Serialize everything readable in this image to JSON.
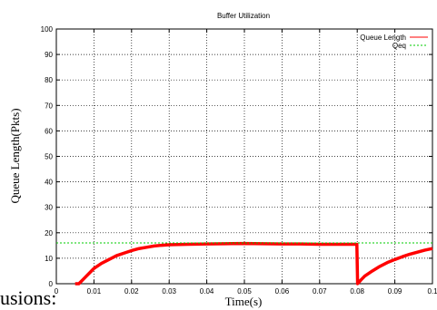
{
  "chart_data": {
    "type": "line",
    "title": "Buffer Utilization",
    "xlabel": "Time(s)",
    "ylabel": "Queue Length(Pkts)",
    "xlim": [
      0,
      0.1
    ],
    "ylim": [
      0,
      100
    ],
    "x_ticks": [
      "0",
      "0.01",
      "0.02",
      "0.03",
      "0.04",
      "0.05",
      "0.06",
      "0.07",
      "0.08",
      "0.09",
      "0.1"
    ],
    "y_ticks": [
      "0",
      "10",
      "20",
      "30",
      "40",
      "50",
      "60",
      "70",
      "80",
      "90",
      "100"
    ],
    "grid": true,
    "legend_position": "top-right",
    "series": [
      {
        "name": "Queue Length",
        "color": "#ff0000",
        "style": "solid-thick",
        "x": [
          0.005,
          0.006,
          0.007,
          0.008,
          0.009,
          0.01,
          0.012,
          0.014,
          0.016,
          0.018,
          0.02,
          0.022,
          0.024,
          0.026,
          0.028,
          0.03,
          0.035,
          0.04,
          0.045,
          0.05,
          0.055,
          0.06,
          0.065,
          0.07,
          0.075,
          0.0799,
          0.0801,
          0.081,
          0.082,
          0.084,
          0.086,
          0.088,
          0.09,
          0.092,
          0.094,
          0.096,
          0.098,
          0.1
        ],
        "y": [
          0,
          0,
          1.5,
          3,
          4.5,
          6,
          8,
          9.5,
          11,
          12,
          13,
          13.8,
          14.3,
          14.8,
          15.1,
          15.3,
          15.5,
          15.6,
          15.7,
          15.8,
          15.7,
          15.6,
          15.6,
          15.5,
          15.5,
          15.5,
          0,
          1.5,
          3,
          5,
          6.8,
          8.3,
          9.5,
          10.6,
          11.6,
          12.4,
          13.2,
          13.8
        ]
      },
      {
        "name": "Qeq",
        "color": "#00cc00",
        "style": "dashed",
        "x": [
          0,
          0.1
        ],
        "y": [
          16,
          16
        ]
      }
    ]
  },
  "stray_text": "usions:"
}
